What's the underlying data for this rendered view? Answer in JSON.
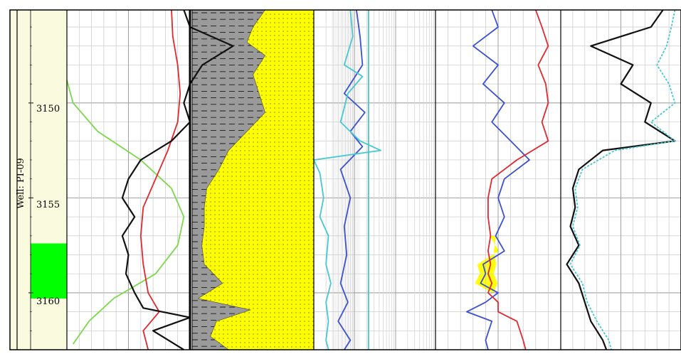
{
  "well_label": "Well: PI-09",
  "colors": {
    "frame": "#000000",
    "grid": "#c8c8c8",
    "grid_major": "#a0a0a0",
    "depth_track_bg": "#fafade",
    "zone_marker": "#00ff00",
    "green_curve": "#7ad84a",
    "red_curve": "#e0282e",
    "black_curve": "#111111",
    "cyan_curve": "#46c8d2",
    "blue_curve": "#3c50d2",
    "shale_fill": "#9a9a9a",
    "sand_fill": "#ffff00",
    "porosity_fill": "#ffff00",
    "dashed_line": "#1a1a1a"
  },
  "chart_data": {
    "type": "line",
    "depth_axis": {
      "ylim": [
        3145.1,
        3163.0
      ],
      "major_ticks": [
        3150,
        3155,
        3160
      ],
      "tick_labels": [
        "3150",
        "3155",
        "3160"
      ],
      "reversed": true
    },
    "zone_marker": {
      "top": 3157.4,
      "bottom": 3160.3
    },
    "tracks": [
      {
        "id": "track1",
        "curves": [
          {
            "color_key": "green_curve",
            "depths": [
              3148.8,
              3150.0,
              3151.5,
              3153.0,
              3154.5,
              3156.0,
              3157.5,
              3159.0,
              3160.3,
              3161.5,
              3162.7
            ],
            "values": [
              0.0,
              0.05,
              0.25,
              0.6,
              0.85,
              0.95,
              0.9,
              0.72,
              0.38,
              0.18,
              0.05
            ]
          },
          {
            "color_key": "red_curve",
            "depths": [
              3145.1,
              3146.5,
              3148.0,
              3149.5,
              3151.0,
              3152.5,
              3154.0,
              3155.5,
              3157.0,
              3158.5,
              3160.0,
              3161.0,
              3162.0,
              3163.0
            ],
            "values": [
              0.85,
              0.86,
              0.9,
              0.92,
              0.9,
              0.82,
              0.72,
              0.62,
              0.6,
              0.62,
              0.66,
              0.75,
              0.62,
              0.66
            ]
          },
          {
            "color_key": "black_curve",
            "depths": [
              3145.1,
              3146.0,
              3147.0,
              3148.0,
              3149.0,
              3150.0,
              3151.0,
              3152.0,
              3153.0,
              3154.0,
              3155.0,
              3156.0,
              3157.0,
              3158.0,
              3159.0,
              3160.0,
              3160.8,
              3161.3,
              3162.0,
              3163.0
            ],
            "values": [
              0.95,
              1.0,
              1.35,
              1.1,
              1.0,
              0.95,
              1.0,
              0.85,
              0.6,
              0.5,
              0.45,
              0.55,
              0.45,
              0.5,
              0.48,
              0.55,
              0.62,
              1.0,
              0.7,
              0.95
            ]
          },
          {
            "color_key": "cyan_curve",
            "depths": [
              3145.1,
              3163.0
            ],
            "values": [
              2.45,
              2.45
            ]
          }
        ]
      },
      {
        "id": "track2",
        "shale_fraction": {
          "depths": [
            3145.1,
            3146.0,
            3146.8,
            3147.5,
            3148.5,
            3149.5,
            3150.5,
            3151.5,
            3152.5,
            3153.5,
            3154.5,
            3155.5,
            3156.5,
            3157.5,
            3158.5,
            3159.5,
            3160.3,
            3160.9,
            3161.5,
            3162.3,
            3163.0
          ],
          "values": [
            0.6,
            0.5,
            0.45,
            0.6,
            0.5,
            0.55,
            0.6,
            0.45,
            0.3,
            0.22,
            0.12,
            0.1,
            0.1,
            0.08,
            0.1,
            0.25,
            0.05,
            0.48,
            0.2,
            0.15,
            0.3
          ]
        }
      },
      {
        "id": "track3",
        "curves": [
          {
            "color_key": "blue_curve",
            "depths": [
              3145.1,
              3146.5,
              3148.0,
              3149.5,
              3150.5,
              3151.5,
              3152.3,
              3153.5,
              3155.0,
              3156.5,
              3158.0,
              3159.5,
              3160.5,
              3161.5,
              3162.5,
              3163.0
            ],
            "values": [
              0.35,
              0.38,
              0.4,
              0.25,
              0.42,
              0.3,
              0.4,
              0.22,
              0.3,
              0.25,
              0.27,
              0.22,
              0.28,
              0.2,
              0.3,
              0.25
            ]
          },
          {
            "color_key": "cyan_curve",
            "depths": [
              3145.1,
              3146.5,
              3148.0,
              3148.6,
              3149.5,
              3151.0,
              3152.0,
              3152.5,
              3153.0,
              3153.7,
              3155.0,
              3156.0,
              3157.0,
              3158.5,
              3159.5,
              3160.5,
              3161.5,
              3162.5,
              3163.0
            ],
            "values": [
              0.3,
              0.32,
              0.25,
              0.4,
              0.28,
              0.22,
              0.38,
              0.55,
              0.0,
              0.05,
              0.08,
              0.05,
              0.12,
              0.1,
              0.14,
              0.1,
              0.12,
              0.1,
              0.12
            ]
          }
        ]
      },
      {
        "id": "track4",
        "curves": [
          {
            "color_key": "blue_curve",
            "depths": [
              3145.1,
              3146.0,
              3147.0,
              3148.0,
              3149.0,
              3150.0,
              3151.0,
              3152.0,
              3153.0,
              3154.0,
              3155.0,
              3156.0,
              3157.0,
              3157.8,
              3158.5,
              3159.0,
              3159.5,
              3160.0,
              3160.5,
              3161.0,
              3161.5,
              3162.5,
              3163.0
            ],
            "values": [
              0.45,
              0.5,
              0.3,
              0.5,
              0.38,
              0.55,
              0.45,
              0.6,
              0.75,
              0.55,
              0.5,
              0.55,
              0.48,
              0.55,
              0.38,
              0.4,
              0.36,
              0.5,
              0.4,
              0.25,
              0.45,
              0.4,
              0.42
            ]
          },
          {
            "color_key": "red_curve",
            "depths": [
              3145.1,
              3146.0,
              3147.0,
              3148.0,
              3149.0,
              3150.0,
              3151.0,
              3152.0,
              3153.0,
              3154.0,
              3155.0,
              3156.0,
              3157.0,
              3157.8,
              3158.5,
              3159.0,
              3159.5,
              3160.0,
              3160.5,
              3161.0,
              3161.5,
              3162.5,
              3163.0
            ],
            "values": [
              0.8,
              0.85,
              0.9,
              0.82,
              0.88,
              0.9,
              0.85,
              0.9,
              0.65,
              0.45,
              0.42,
              0.42,
              0.44,
              0.42,
              0.44,
              0.42,
              0.45,
              0.42,
              0.5,
              0.5,
              0.65,
              0.7,
              0.72
            ]
          }
        ]
      },
      {
        "id": "track5",
        "curves": [
          {
            "color_key": "black_curve",
            "depths": [
              3145.1,
              3146.0,
              3147.0,
              3148.0,
              3149.0,
              3150.0,
              3151.0,
              3152.0,
              3152.5,
              3153.5,
              3154.5,
              3155.5,
              3156.5,
              3157.5,
              3158.5,
              3159.5,
              3160.5,
              3161.5,
              3162.5,
              3163.0
            ],
            "values": [
              0.85,
              0.75,
              0.25,
              0.6,
              0.5,
              0.75,
              0.7,
              0.95,
              0.35,
              0.15,
              0.1,
              0.12,
              0.08,
              0.15,
              0.05,
              0.15,
              0.2,
              0.25,
              0.35,
              0.38
            ]
          },
          {
            "color_key": "cyan_curve",
            "dashed": true,
            "depths": [
              3145.1,
              3146.0,
              3147.0,
              3148.0,
              3149.0,
              3150.0,
              3151.0,
              3152.0,
              3152.5,
              3153.5,
              3154.5,
              3155.5,
              3156.5,
              3157.5,
              3158.5,
              3159.5,
              3160.5,
              3161.5,
              3162.5,
              3163.0
            ],
            "values": [
              0.95,
              0.92,
              0.88,
              0.8,
              0.9,
              0.95,
              0.75,
              0.95,
              0.45,
              0.18,
              0.12,
              0.14,
              0.1,
              0.16,
              0.08,
              0.18,
              0.22,
              0.3,
              0.4,
              0.42
            ]
          }
        ]
      }
    ]
  }
}
